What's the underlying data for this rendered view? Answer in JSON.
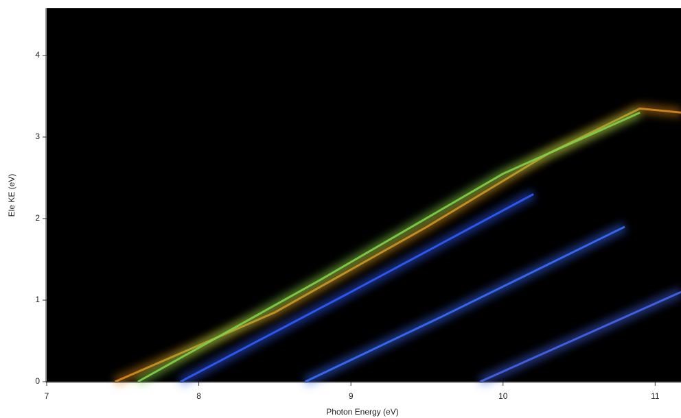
{
  "chart_data": {
    "type": "line",
    "x_label": "Photon Energy (eV)",
    "y_label": "Ele KE (eV)",
    "xlim": [
      7,
      11.17
    ],
    "ylim": [
      0,
      4.58
    ],
    "xticks": [
      7,
      8,
      9,
      10,
      11
    ],
    "yticks": [
      0,
      1,
      2,
      3,
      4
    ],
    "background": "#000000",
    "series": [
      {
        "color": "#d98a1c",
        "x": [
          7.45,
          8.5,
          9.5,
          10.3,
          10.9,
          11.17
        ],
        "values": [
          0,
          0.85,
          1.9,
          2.8,
          3.35,
          3.3
        ]
      },
      {
        "color": "#7fd14a",
        "x": [
          7.6,
          8.8,
          10.0,
          10.9
        ],
        "values": [
          0,
          1.25,
          2.55,
          3.3
        ]
      },
      {
        "color": "#2f5cff",
        "x": [
          7.88,
          9.0,
          10.2
        ],
        "values": [
          0,
          1.1,
          2.3
        ]
      },
      {
        "color": "#3a6cff",
        "x": [
          8.7,
          9.6,
          10.8
        ],
        "values": [
          0,
          0.8,
          1.9
        ]
      },
      {
        "color": "#4466ee",
        "x": [
          9.85,
          11.17
        ],
        "values": [
          0,
          1.1
        ]
      }
    ]
  }
}
